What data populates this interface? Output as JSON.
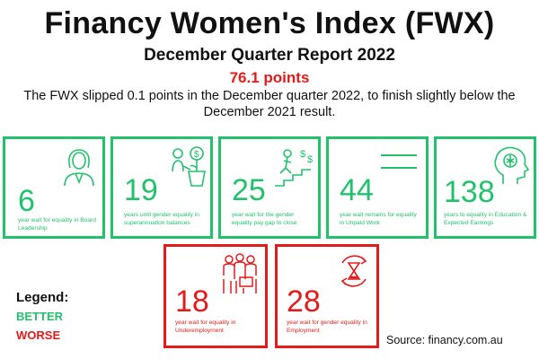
{
  "header": {
    "title": "Financy Women's Index (FWX)",
    "subtitle": "December Quarter Report 2022",
    "points": "76.1 points",
    "description": "The FWX slipped 0.1 points in the December quarter 2022, to finish slightly below the December 2021 result."
  },
  "colors": {
    "better": "#22c26c",
    "worse": "#e31b1b"
  },
  "cards": [
    {
      "value": "6",
      "caption": "year wait for equality in Board Leadership",
      "status": "better",
      "icon": "businesswoman-icon"
    },
    {
      "value": "19",
      "caption": "years until gender equality in superannuation balances",
      "status": "better",
      "icon": "money-plant-icon"
    },
    {
      "value": "25",
      "caption": "year wait for the gender equality pay gap to close",
      "status": "better",
      "icon": "climbing-stairs-icon"
    },
    {
      "value": "44",
      "caption": "year wait remains for equality in Unpaid Work",
      "status": "better",
      "icon": "equals-icon"
    },
    {
      "value": "138",
      "caption": "years to equality in Education & Expected Earnings",
      "status": "better",
      "icon": "brain-head-icon"
    },
    {
      "value": "18",
      "caption": "year wait for equality in Underemployment",
      "status": "worse",
      "icon": "workers-group-icon"
    },
    {
      "value": "28",
      "caption": "year wait for gender equality in Employment",
      "status": "worse",
      "icon": "hourglass-cycle-icon"
    }
  ],
  "legend": {
    "title": "Legend:",
    "better": "BETTER",
    "worse": "WORSE"
  },
  "source": "Source: financy.com.au"
}
